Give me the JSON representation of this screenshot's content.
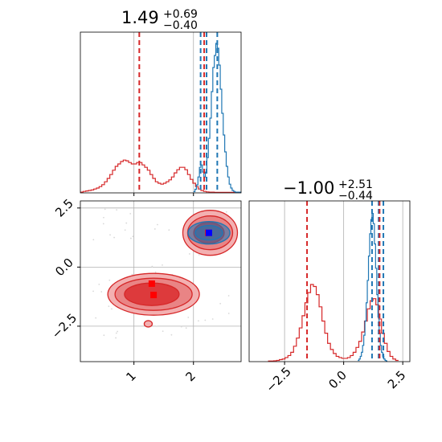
{
  "chart_data": {
    "type": "corner",
    "colors": {
      "red": "#d62728",
      "blue": "#1f77b4",
      "marker_blue": "#0000ff",
      "marker_red": "#ff0000",
      "grid": "#b0b0b0"
    },
    "parameters": [
      {
        "title_value": "1.49",
        "title_plus": "+0.69",
        "title_minus": "−0.40",
        "range": [
          0.1,
          2.8
        ],
        "ticks": [
          1,
          2
        ],
        "tick_labels": [
          "1",
          "2"
        ]
      },
      {
        "title_value": "−1.00",
        "title_plus": "+2.51",
        "title_minus": "−0.44",
        "range": [
          -4.0,
          2.8
        ],
        "ticks": [
          -2.5,
          0.0,
          2.5
        ],
        "tick_labels": [
          "−2.5",
          "0.0",
          "2.5"
        ]
      }
    ],
    "panel_1d_x": {
      "red_hist": {
        "bin_edges_start": 0.1,
        "bin_width": 0.045,
        "counts": [
          0.3,
          0.6,
          0.8,
          1,
          1.2,
          1.6,
          2,
          2.6,
          3.4,
          4.6,
          6,
          7.6,
          9.4,
          11,
          12,
          13,
          13.6,
          13.3,
          12.6,
          12,
          12,
          12.6,
          12.6,
          11.6,
          10.6,
          9.4,
          7.6,
          6,
          4.6,
          4,
          3.6,
          4,
          4.6,
          5.4,
          6.6,
          8.3,
          9.6,
          10.6,
          10.6,
          9.6,
          7.6,
          5.6,
          4,
          2.6,
          1.6,
          1,
          0.6,
          0.4,
          0.3,
          0.3,
          0.2,
          0.2,
          0.2,
          0.2,
          0.2,
          0.2,
          0.2,
          0.2,
          0.2,
          0.2
        ]
      },
      "blue_hist": {
        "bin_edges_start": 2.0,
        "bin_width": 0.025,
        "counts": [
          0.5,
          1.5,
          3.3,
          6.6,
          10.6,
          11.6,
          8.6,
          6.6,
          8.6,
          14.6,
          22.6,
          31,
          42,
          52,
          57,
          62,
          60,
          53,
          43,
          33,
          24,
          17,
          11,
          6.6,
          3.6,
          2,
          1,
          0.6,
          0.3,
          0.3,
          0.3,
          0.3
        ]
      },
      "red_lines": [
        1.09,
        2.18
      ],
      "red_dashes_thick": [
        2.18
      ],
      "blue_lines": [
        2.12,
        2.22,
        2.4
      ],
      "ymax": 64
    },
    "panel_1d_y": {
      "red_hist": {
        "bin_edges_start": -3.2,
        "bin_width": 0.12,
        "counts": [
          0.3,
          0.3,
          0.4,
          0.6,
          1,
          1.3,
          2,
          3,
          4.6,
          7.6,
          11.6,
          16.6,
          22.6,
          29,
          34,
          38,
          37,
          33,
          27,
          20,
          14,
          9,
          6,
          4,
          2.6,
          2,
          1.6,
          1.6,
          2,
          3,
          4.6,
          7,
          10,
          14.6,
          20,
          26,
          30,
          31,
          28,
          21,
          14,
          9,
          5,
          2.6,
          1.3,
          0.6
        ]
      },
      "blue_hist": {
        "bin_edges_start": 0.6,
        "bin_width": 0.05,
        "counts": [
          0.6,
          1.3,
          2.6,
          4.6,
          8,
          13,
          20,
          29,
          40,
          52,
          63,
          70,
          73,
          68,
          58,
          46,
          33,
          22,
          14,
          8,
          4.6,
          2.6,
          1.3,
          0.6,
          0.3
        ]
      },
      "red_lines": [
        -1.55,
        1.52
      ],
      "blue_lines": [
        1.2,
        1.48,
        1.68
      ],
      "ymax": 76
    },
    "panel_2d": {
      "blue_square": [
        2.26,
        1.45
      ],
      "red_squares": [
        [
          1.3,
          -0.7
        ],
        [
          1.33,
          -1.18
        ],
        [
          2.25,
          1.45
        ]
      ]
    }
  }
}
